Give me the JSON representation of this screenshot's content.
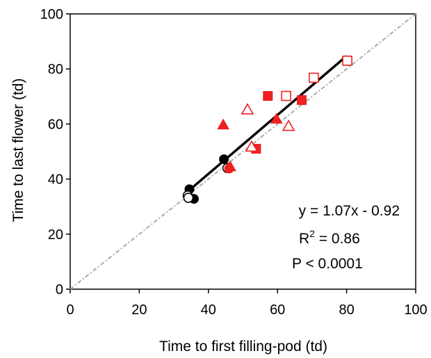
{
  "chart_data": {
    "type": "scatter",
    "xlabel": "Time to first filling-pod (td)",
    "ylabel": "Time to last flower (td)",
    "xlim": [
      0,
      100
    ],
    "ylim": [
      0,
      100
    ],
    "xticks": [
      0,
      20,
      40,
      60,
      80,
      100
    ],
    "yticks": [
      0,
      20,
      40,
      60,
      80,
      100
    ],
    "grid": false,
    "legend": "none",
    "colors": {
      "black": "#000000",
      "red": "#ee2020",
      "reference_line": "#aaaaaa",
      "fit_line": "#000000"
    },
    "series": [
      {
        "marker": "circle",
        "fill": "filled",
        "color": "#000000",
        "points": [
          [
            34.5,
            36.3
          ],
          [
            35.8,
            32.8
          ],
          [
            44.5,
            47.2
          ]
        ]
      },
      {
        "marker": "circle",
        "fill": "open",
        "color": "#000000",
        "points": [
          [
            34.0,
            34.0
          ],
          [
            34.2,
            33.2
          ],
          [
            45.5,
            44.0
          ]
        ]
      },
      {
        "marker": "circle",
        "fill": "filled",
        "color": "#ee2020",
        "points": [
          [
            46.0,
            43.8
          ]
        ]
      },
      {
        "marker": "square",
        "fill": "filled",
        "color": "#ee2020",
        "points": [
          [
            57.2,
            70.2
          ],
          [
            67.0,
            68.7
          ],
          [
            53.8,
            51.0
          ]
        ]
      },
      {
        "marker": "square",
        "fill": "open",
        "color": "#ee2020",
        "points": [
          [
            62.5,
            70.2
          ],
          [
            70.5,
            76.8
          ],
          [
            80.2,
            83.0
          ]
        ]
      },
      {
        "marker": "triangle",
        "fill": "filled",
        "color": "#ee2020",
        "points": [
          [
            44.3,
            59.7
          ],
          [
            59.7,
            61.8
          ],
          [
            46.3,
            44.5
          ]
        ]
      },
      {
        "marker": "triangle",
        "fill": "open",
        "color": "#ee2020",
        "points": [
          [
            51.3,
            65.2
          ],
          [
            63.2,
            59.2
          ],
          [
            52.5,
            51.7
          ]
        ]
      }
    ],
    "fit_line": {
      "x": [
        34.5,
        80.0
      ],
      "y": [
        36.0,
        84.7
      ]
    },
    "reference_line": {
      "x": [
        0,
        100
      ],
      "y": [
        0,
        100
      ]
    },
    "annotations": [
      "y = 1.07x - 0.92",
      "R",
      "2",
      " = 0.86",
      "P < 0.0001"
    ]
  }
}
